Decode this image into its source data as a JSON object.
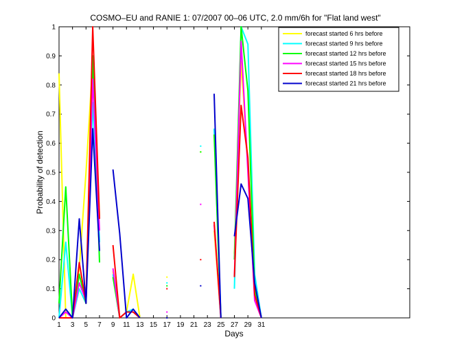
{
  "chart_data": {
    "type": "line",
    "title": "COSMO–EU and RANIE 1: 07/2007 00–06 UTC, 2.0 mm/6h for \"Flat land west\"",
    "xlabel": "Days",
    "ylabel": "Probability of detection",
    "xlim": [
      1,
      53
    ],
    "ylim": [
      0,
      1
    ],
    "x_ticks": [
      1,
      3,
      5,
      7,
      9,
      11,
      13,
      15,
      17,
      19,
      21,
      23,
      25,
      27,
      29,
      31
    ],
    "y_ticks": [
      0,
      0.1,
      0.2,
      0.3,
      0.4,
      0.5,
      0.6,
      0.7,
      0.8,
      0.9,
      1
    ],
    "legend_position": "top-right",
    "x": [
      1,
      2,
      3,
      4,
      5,
      6,
      7,
      8,
      9,
      10,
      11,
      12,
      13,
      14,
      15,
      16,
      17,
      18,
      19,
      20,
      21,
      22,
      23,
      24,
      25,
      26,
      27,
      28,
      29,
      30,
      31
    ],
    "series": [
      {
        "name": "forecast started 6 hrs before",
        "color": "#ffff00",
        "values": [
          0.84,
          0.0,
          0.0,
          0.17,
          0.5,
          0.88,
          0.35,
          null,
          0.16,
          0.0,
          0.02,
          0.15,
          0.0,
          null,
          null,
          null,
          0.14,
          null,
          null,
          null,
          null,
          0.57,
          null,
          0.3,
          0.0,
          null,
          0.22,
          0.88,
          0.53,
          0.07,
          0.0
        ]
      },
      {
        "name": "forecast started 9 hrs before",
        "color": "#00ffff",
        "values": [
          0.0,
          0.26,
          0.0,
          0.1,
          0.05,
          0.74,
          0.26,
          null,
          0.15,
          0.0,
          0.02,
          0.03,
          0.0,
          null,
          null,
          null,
          0.12,
          null,
          null,
          null,
          null,
          0.59,
          null,
          0.65,
          0.0,
          null,
          0.1,
          1.0,
          0.94,
          0.15,
          0.0
        ]
      },
      {
        "name": "forecast started 12 hrs before",
        "color": "#00ff00",
        "values": [
          0.05,
          0.45,
          0.0,
          0.15,
          0.05,
          0.9,
          0.19,
          null,
          0.14,
          0.0,
          0.02,
          0.02,
          0.0,
          null,
          null,
          null,
          0.11,
          null,
          null,
          null,
          null,
          0.57,
          null,
          0.63,
          0.0,
          null,
          0.2,
          1.0,
          0.78,
          0.1,
          0.0
        ]
      },
      {
        "name": "forecast started 15 hrs before",
        "color": "#ff00ff",
        "values": [
          0.0,
          0.02,
          0.0,
          0.12,
          0.06,
          0.82,
          0.3,
          null,
          0.17,
          0.0,
          0.02,
          0.02,
          0.0,
          null,
          null,
          null,
          0.02,
          null,
          null,
          null,
          null,
          0.39,
          null,
          0.32,
          0.0,
          null,
          0.14,
          0.95,
          0.5,
          0.06,
          0.0
        ]
      },
      {
        "name": "forecast started 18 hrs before",
        "color": "#ff0000",
        "values": [
          0.0,
          0.0,
          0.0,
          0.19,
          0.05,
          1.0,
          0.34,
          null,
          0.25,
          0.0,
          0.02,
          0.02,
          0.0,
          null,
          null,
          null,
          0.1,
          null,
          null,
          null,
          null,
          0.2,
          null,
          0.33,
          0.0,
          null,
          0.14,
          0.73,
          0.55,
          0.08,
          0.0
        ]
      },
      {
        "name": "forecast started 21 hrs before",
        "color": "#0000cc",
        "values": [
          0.0,
          0.03,
          0.0,
          0.34,
          0.05,
          0.65,
          0.23,
          null,
          0.51,
          0.29,
          0.0,
          0.03,
          0.0,
          null,
          null,
          null,
          0.0,
          null,
          null,
          null,
          null,
          0.11,
          null,
          0.77,
          0.0,
          null,
          0.28,
          0.46,
          0.41,
          0.12,
          0.0
        ]
      }
    ]
  }
}
